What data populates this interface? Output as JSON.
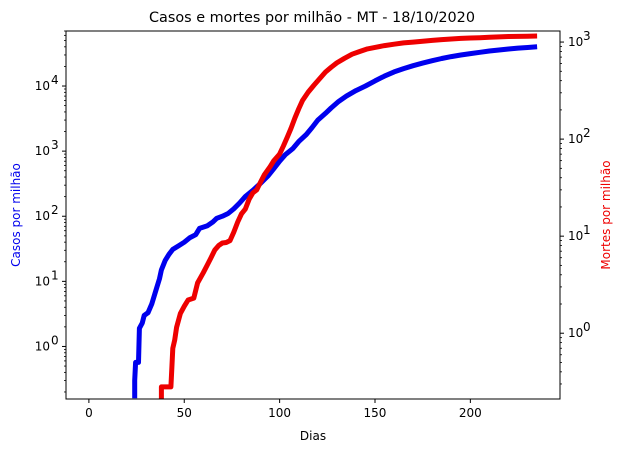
{
  "chart_data": {
    "type": "line",
    "title": "Casos e mortes por milhão - MT - 18/10/2020",
    "xlabel": "Dias",
    "ylabel_left": "Casos por milhão",
    "ylabel_right": "Mortes por milhão",
    "xlim": [
      -12,
      247
    ],
    "x_ticks": [
      0,
      50,
      100,
      150,
      200
    ],
    "ylim_left": [
      0.156,
      70000
    ],
    "ylim_right": [
      0.21,
      1300
    ],
    "y_scale": "log",
    "left_ticks": [
      {
        "value": 1,
        "base": "10",
        "exp": "0"
      },
      {
        "value": 10,
        "base": "10",
        "exp": "1"
      },
      {
        "value": 100,
        "base": "10",
        "exp": "2"
      },
      {
        "value": 1000,
        "base": "10",
        "exp": "3"
      },
      {
        "value": 10000,
        "base": "10",
        "exp": "4"
      }
    ],
    "right_ticks": [
      {
        "value": 1,
        "base": "10",
        "exp": "0"
      },
      {
        "value": 10,
        "base": "10",
        "exp": "1"
      },
      {
        "value": 100,
        "base": "10",
        "exp": "2"
      },
      {
        "value": 1000,
        "base": "10",
        "exp": "3"
      }
    ],
    "grid": false,
    "series": [
      {
        "axis": "left",
        "color": "#0000ee",
        "points": [
          [
            24,
            0.16
          ],
          [
            24,
            0.3
          ],
          [
            24.5,
            0.57
          ],
          [
            26,
            0.57
          ],
          [
            26.5,
            1.9
          ],
          [
            28,
            2.3
          ],
          [
            29,
            3.0
          ],
          [
            31,
            3.3
          ],
          [
            33,
            4.5
          ],
          [
            35,
            7
          ],
          [
            37,
            11
          ],
          [
            38,
            15
          ],
          [
            40,
            21
          ],
          [
            42,
            26
          ],
          [
            44,
            31
          ],
          [
            47,
            35
          ],
          [
            50,
            40
          ],
          [
            53,
            47
          ],
          [
            56,
            52
          ],
          [
            58,
            65
          ],
          [
            62,
            71
          ],
          [
            65,
            82
          ],
          [
            67,
            93
          ],
          [
            70,
            100
          ],
          [
            73,
            110
          ],
          [
            76,
            130
          ],
          [
            79,
            160
          ],
          [
            82,
            200
          ],
          [
            86,
            250
          ],
          [
            90,
            320
          ],
          [
            94,
            420
          ],
          [
            97,
            540
          ],
          [
            100,
            700
          ],
          [
            103,
            880
          ],
          [
            107,
            1100
          ],
          [
            110,
            1400
          ],
          [
            114,
            1800
          ],
          [
            117,
            2300
          ],
          [
            120,
            3000
          ],
          [
            124,
            3800
          ],
          [
            127,
            4600
          ],
          [
            131,
            5800
          ],
          [
            135,
            7000
          ],
          [
            140,
            8500
          ],
          [
            145,
            10000
          ],
          [
            150,
            12000
          ],
          [
            155,
            14200
          ],
          [
            160,
            16500
          ],
          [
            165,
            18500
          ],
          [
            170,
            20500
          ],
          [
            175,
            22500
          ],
          [
            180,
            24500
          ],
          [
            185,
            26500
          ],
          [
            190,
            28300
          ],
          [
            195,
            30000
          ],
          [
            200,
            31500
          ],
          [
            205,
            33000
          ],
          [
            210,
            34500
          ],
          [
            215,
            35800
          ],
          [
            220,
            37000
          ],
          [
            225,
            38200
          ],
          [
            230,
            39000
          ],
          [
            235,
            40000
          ]
        ]
      },
      {
        "axis": "right",
        "color": "#ee0000",
        "points": [
          [
            38,
            0.21
          ],
          [
            38,
            0.28
          ],
          [
            43,
            0.28
          ],
          [
            43.5,
            0.45
          ],
          [
            44,
            0.7
          ],
          [
            45,
            0.85
          ],
          [
            46,
            1.15
          ],
          [
            48,
            1.6
          ],
          [
            50,
            1.9
          ],
          [
            52,
            2.2
          ],
          [
            55,
            2.3
          ],
          [
            57,
            3.3
          ],
          [
            60,
            4.2
          ],
          [
            62,
            5.0
          ],
          [
            64,
            6.0
          ],
          [
            66,
            7.2
          ],
          [
            68,
            8.0
          ],
          [
            70,
            8.5
          ],
          [
            72,
            8.6
          ],
          [
            74,
            9.0
          ],
          [
            76,
            11
          ],
          [
            78,
            14
          ],
          [
            80,
            17
          ],
          [
            82,
            19
          ],
          [
            84,
            24
          ],
          [
            86,
            28
          ],
          [
            88,
            30
          ],
          [
            90,
            36
          ],
          [
            92,
            43
          ],
          [
            95,
            52
          ],
          [
            97,
            60
          ],
          [
            100,
            70
          ],
          [
            102,
            85
          ],
          [
            104,
            105
          ],
          [
            106,
            130
          ],
          [
            108,
            165
          ],
          [
            110,
            205
          ],
          [
            112,
            250
          ],
          [
            115,
            305
          ],
          [
            118,
            360
          ],
          [
            121,
            420
          ],
          [
            124,
            490
          ],
          [
            127,
            550
          ],
          [
            130,
            610
          ],
          [
            134,
            680
          ],
          [
            138,
            750
          ],
          [
            142,
            800
          ],
          [
            146,
            850
          ],
          [
            150,
            880
          ],
          [
            155,
            920
          ],
          [
            160,
            950
          ],
          [
            165,
            980
          ],
          [
            170,
            1000
          ],
          [
            175,
            1020
          ],
          [
            180,
            1040
          ],
          [
            185,
            1060
          ],
          [
            190,
            1075
          ],
          [
            195,
            1090
          ],
          [
            200,
            1100
          ],
          [
            205,
            1110
          ],
          [
            210,
            1120
          ],
          [
            215,
            1130
          ],
          [
            220,
            1140
          ],
          [
            225,
            1145
          ],
          [
            230,
            1150
          ],
          [
            235,
            1155
          ]
        ]
      }
    ]
  }
}
